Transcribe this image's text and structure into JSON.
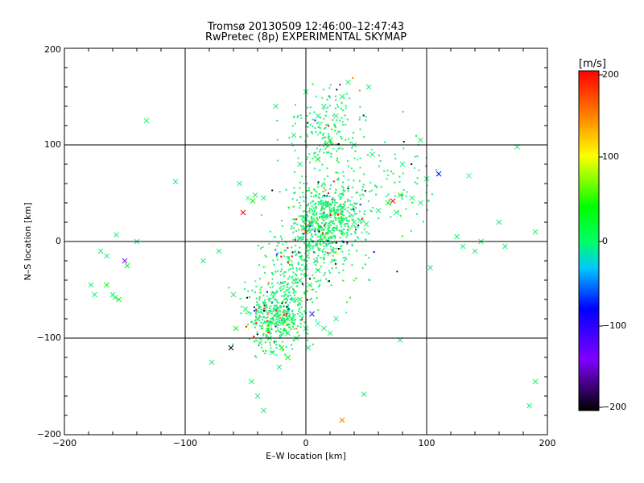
{
  "chart_data": {
    "type": "scatter",
    "title": "Tromsø 20130509 12:46:00–12:47:43",
    "subtitle": "RwPretec (8p) EXPERIMENTAL SKYMAP",
    "xlabel": "E–W location [km]",
    "ylabel": "N–S location [km]",
    "xlim": [
      -200,
      200
    ],
    "ylim": [
      -200,
      200
    ],
    "x_ticks": [
      "−200",
      "−100",
      "0",
      "100",
      "200"
    ],
    "y_ticks": [
      "−200",
      "−100",
      "0",
      "100",
      "200"
    ],
    "grid": true,
    "colorbar": {
      "label": "[m/s]",
      "range": [
        -200,
        200
      ],
      "ticks": [
        "200",
        "100",
        "0",
        "−100",
        "−200"
      ],
      "colors": [
        "#000000",
        "#8000ff",
        "#0000ff",
        "#00ffff",
        "#00ff00",
        "#ffff00",
        "#ff8000",
        "#ff0000"
      ]
    },
    "series": [
      {
        "marker": "x",
        "points": [
          [
            -132,
            125
          ],
          [
            -157,
            7
          ],
          [
            -140,
            0
          ],
          [
            -108,
            62
          ],
          [
            -170,
            -10
          ],
          [
            -165,
            -15
          ],
          [
            -160,
            -55
          ],
          [
            -158,
            -58
          ],
          [
            -155,
            -60
          ],
          [
            -150,
            -20
          ],
          [
            -148,
            -25
          ],
          [
            -178,
            -45
          ],
          [
            -175,
            -55
          ],
          [
            -165,
            -45
          ],
          [
            -85,
            -20
          ],
          [
            -72,
            -10
          ],
          [
            -55,
            60
          ],
          [
            -52,
            30
          ],
          [
            -48,
            45
          ],
          [
            -44,
            42
          ],
          [
            -42,
            48
          ],
          [
            -35,
            45
          ],
          [
            -60,
            -55
          ],
          [
            -78,
            -125
          ],
          [
            -62,
            -110
          ],
          [
            -58,
            -90
          ],
          [
            -50,
            -70
          ],
          [
            -40,
            -80
          ],
          [
            -38,
            -105
          ],
          [
            -30,
            -100
          ],
          [
            -28,
            -115
          ],
          [
            -22,
            -130
          ],
          [
            -20,
            -110
          ],
          [
            -15,
            -120
          ],
          [
            -45,
            -145
          ],
          [
            -40,
            -160
          ],
          [
            -35,
            -175
          ],
          [
            -10,
            -60
          ],
          [
            -5,
            -40
          ],
          [
            -2,
            25
          ],
          [
            0,
            10
          ],
          [
            2,
            -5
          ],
          [
            3,
            -45
          ],
          [
            5,
            18
          ],
          [
            8,
            -20
          ],
          [
            10,
            -30
          ],
          [
            15,
            25
          ],
          [
            20,
            10
          ],
          [
            22,
            -10
          ],
          [
            25,
            30
          ],
          [
            30,
            35
          ],
          [
            40,
            20
          ],
          [
            45,
            22
          ],
          [
            50,
            18
          ],
          [
            60,
            32
          ],
          [
            68,
            40
          ],
          [
            72,
            42
          ],
          [
            75,
            30
          ],
          [
            78,
            48
          ],
          [
            88,
            45
          ],
          [
            95,
            40
          ],
          [
            100,
            65
          ],
          [
            103,
            -27
          ],
          [
            110,
            70
          ],
          [
            130,
            -5
          ],
          [
            135,
            68
          ],
          [
            140,
            -10
          ],
          [
            145,
            0
          ],
          [
            160,
            20
          ],
          [
            165,
            -5
          ],
          [
            190,
            10
          ],
          [
            30,
            150
          ],
          [
            35,
            165
          ],
          [
            52,
            160
          ],
          [
            -25,
            140
          ],
          [
            25,
            130
          ],
          [
            0,
            155
          ],
          [
            15,
            140
          ],
          [
            10,
            130
          ],
          [
            -10,
            110
          ],
          [
            20,
            105
          ],
          [
            40,
            100
          ],
          [
            -5,
            80
          ],
          [
            10,
            85
          ],
          [
            55,
            90
          ],
          [
            80,
            80
          ],
          [
            95,
            105
          ],
          [
            125,
            5
          ],
          [
            175,
            98
          ],
          [
            30,
            -185
          ],
          [
            48,
            -158
          ],
          [
            78,
            -102
          ],
          [
            190,
            -145
          ],
          [
            185,
            -170
          ],
          [
            -10,
            -40
          ],
          [
            -5,
            -60
          ],
          [
            5,
            -75
          ],
          [
            -15,
            -95
          ],
          [
            -20,
            -85
          ],
          [
            -25,
            -70
          ],
          [
            -30,
            -85
          ],
          [
            -18,
            -75
          ],
          [
            -12,
            -80
          ],
          [
            10,
            -85
          ],
          [
            15,
            -90
          ],
          [
            20,
            -95
          ],
          [
            25,
            -80
          ],
          [
            0,
            -90
          ],
          [
            -8,
            -100
          ],
          [
            2,
            -110
          ]
        ]
      },
      {
        "marker": "dot",
        "clusters": [
          {
            "cx": 18,
            "cy": 25,
            "sx": 14,
            "sy": 20,
            "n": 620
          },
          {
            "cx": -25,
            "cy": -78,
            "sx": 12,
            "sy": 16,
            "n": 420
          },
          {
            "cx": -10,
            "cy": -35,
            "sx": 14,
            "sy": 20,
            "n": 180
          },
          {
            "cx": 18,
            "cy": 115,
            "sx": 15,
            "sy": 22,
            "n": 200
          },
          {
            "cx": 75,
            "cy": 60,
            "sx": 16,
            "sy": 22,
            "n": 70
          },
          {
            "cx": 10,
            "cy": -10,
            "sx": 25,
            "sy": 25,
            "n": 120
          }
        ]
      }
    ]
  }
}
